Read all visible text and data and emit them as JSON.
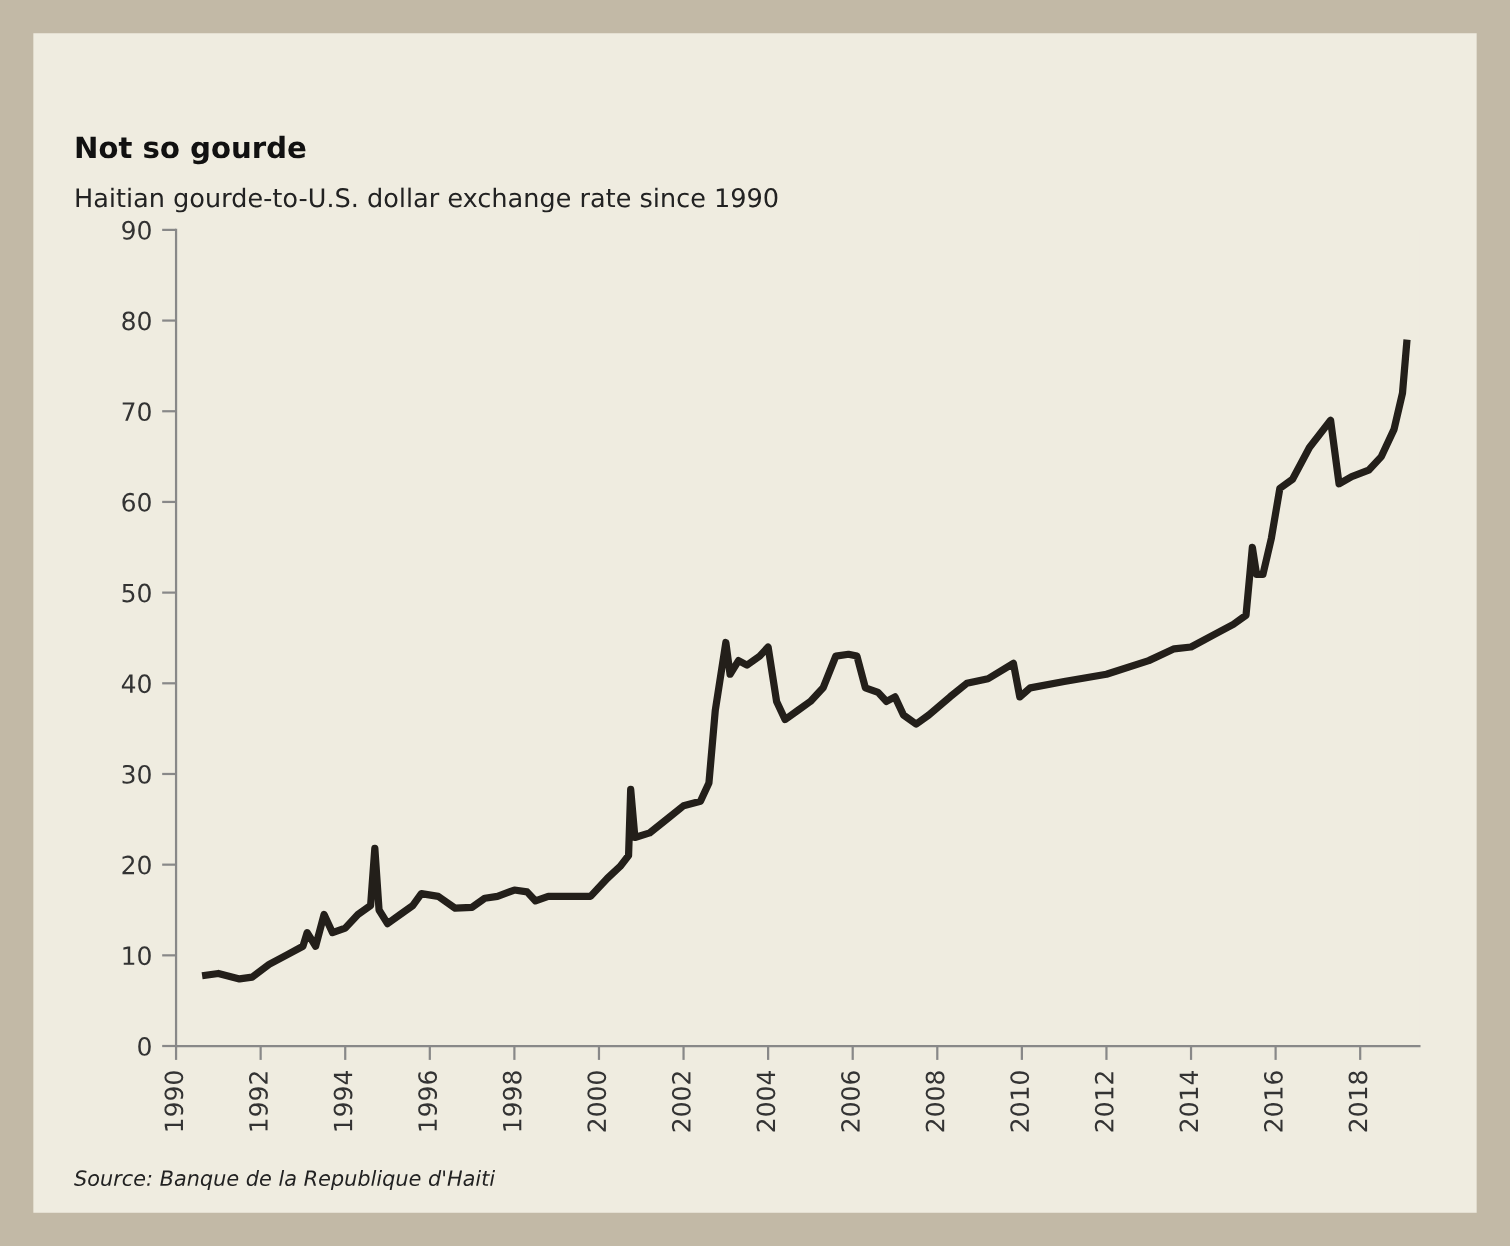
{
  "chart_data": {
    "type": "line",
    "title": "Not so gourde",
    "subtitle": "Haitian gourde-to-U.S. dollar exchange rate since 1990",
    "annotations": [
      "Source: Banque de la Republique d'Haiti"
    ],
    "x": [
      1990.7,
      1991.0,
      1991.5,
      1991.8,
      1992.2,
      1992.6,
      1993.0,
      1993.1,
      1993.3,
      1993.5,
      1993.7,
      1994.0,
      1994.3,
      1994.6,
      1994.7,
      1994.8,
      1995.0,
      1995.3,
      1995.6,
      1995.8,
      1996.2,
      1996.6,
      1997.0,
      1997.3,
      1997.6,
      1998.0,
      1998.3,
      1998.5,
      1998.8,
      1999.2,
      1999.8,
      2000.2,
      2000.5,
      2000.7,
      2000.75,
      2000.85,
      2001.2,
      2001.6,
      2002.0,
      2002.4,
      2002.6,
      2002.75,
      2003.0,
      2003.1,
      2003.3,
      2003.5,
      2003.8,
      2004.0,
      2004.2,
      2004.4,
      2004.7,
      2005.0,
      2005.3,
      2005.6,
      2005.9,
      2006.1,
      2006.3,
      2006.6,
      2006.8,
      2007.0,
      2007.2,
      2007.5,
      2007.8,
      2008.3,
      2008.7,
      2009.2,
      2009.8,
      2009.95,
      2010.2,
      2011.0,
      2012.0,
      2013.0,
      2013.6,
      2014.0,
      2014.6,
      2015.0,
      2015.3,
      2015.45,
      2015.55,
      2015.7,
      2015.9,
      2016.1,
      2016.4,
      2016.8,
      2017.3,
      2017.5,
      2017.8,
      2018.2,
      2018.5,
      2018.8,
      2019.0,
      2019.1
    ],
    "series": [
      {
        "color": "#231f1a",
        "values": [
          7.8,
          8.0,
          7.4,
          7.6,
          9.0,
          10.0,
          11.0,
          12.5,
          11.0,
          14.5,
          12.5,
          13,
          14.5,
          15.5,
          21.8,
          15,
          13.5,
          14.5,
          15.5,
          16.8,
          16.5,
          15.2,
          15.3,
          16.3,
          16.5,
          17.2,
          17.0,
          16,
          16.5,
          16.5,
          16.5,
          18.5,
          19.8,
          21,
          28.3,
          23,
          23.5,
          25,
          26.5,
          27,
          29,
          37,
          44.5,
          41,
          42.5,
          42,
          43,
          44,
          38,
          36,
          37,
          38,
          39.5,
          43,
          43.2,
          43,
          39.5,
          39,
          38,
          38.5,
          36.5,
          35.5,
          36.5,
          38.5,
          40,
          40.5,
          42.2,
          38.5,
          39.5,
          40.2,
          41,
          42.5,
          43.8,
          44,
          45.5,
          46.5,
          47.5,
          55,
          52,
          52,
          56,
          61.5,
          62.5,
          66,
          69,
          62,
          62.8,
          63.5,
          65,
          68,
          72,
          77.5
        ]
      }
    ],
    "xlim": [
      1990,
      2019.4
    ],
    "ylim": [
      0,
      90
    ],
    "xticks": [
      1990,
      1992,
      1994,
      1996,
      1998,
      2000,
      2002,
      2004,
      2006,
      2008,
      2010,
      2012,
      2014,
      2016,
      2018
    ],
    "yticks": [
      0,
      10,
      20,
      30,
      40,
      50,
      60,
      70,
      80,
      90
    ],
    "grid": false,
    "line_style": "solid",
    "marker": "none"
  }
}
